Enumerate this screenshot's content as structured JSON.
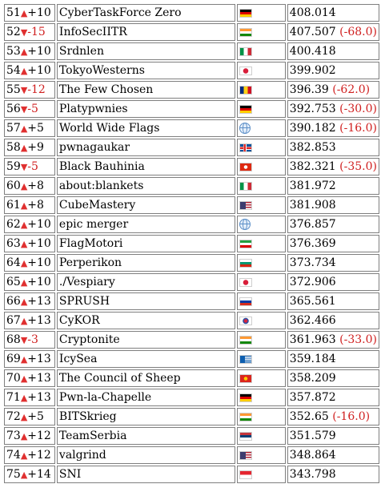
{
  "up_arrow": "▲",
  "down_arrow": "▼",
  "rows": [
    {
      "rank": "51",
      "dir": "up",
      "change": "+10",
      "team": "CyberTaskForce Zero",
      "flag": "de",
      "score": "408.014",
      "delta": ""
    },
    {
      "rank": "52",
      "dir": "down",
      "change": "-15",
      "team": "InfoSecIITR",
      "flag": "in",
      "score": "407.507",
      "delta": "(-68.0)"
    },
    {
      "rank": "53",
      "dir": "up",
      "change": "+10",
      "team": "Srdnlen",
      "flag": "it",
      "score": "400.418",
      "delta": ""
    },
    {
      "rank": "54",
      "dir": "up",
      "change": "+10",
      "team": "TokyoWesterns",
      "flag": "jp",
      "score": "399.902",
      "delta": ""
    },
    {
      "rank": "55",
      "dir": "down",
      "change": "-12",
      "team": "The Few Chosen",
      "flag": "ro",
      "score": "396.39",
      "delta": "(-62.0)"
    },
    {
      "rank": "56",
      "dir": "down",
      "change": "-5",
      "team": "Platypwnies",
      "flag": "de",
      "score": "392.753",
      "delta": "(-30.0)"
    },
    {
      "rank": "57",
      "dir": "up",
      "change": "+5",
      "team": "World Wide Flags",
      "flag": "globe",
      "score": "390.182",
      "delta": "(-16.0)"
    },
    {
      "rank": "58",
      "dir": "up",
      "change": "+9",
      "team": "pwnagaukar",
      "flag": "is",
      "score": "382.853",
      "delta": ""
    },
    {
      "rank": "59",
      "dir": "down",
      "change": "-5",
      "team": "Black Bauhinia",
      "flag": "hk",
      "score": "382.321",
      "delta": "(-35.0)"
    },
    {
      "rank": "60",
      "dir": "up",
      "change": "+8",
      "team": "about:blankets",
      "flag": "it",
      "score": "381.972",
      "delta": ""
    },
    {
      "rank": "61",
      "dir": "up",
      "change": "+8",
      "team": "CubeMastery",
      "flag": "us",
      "score": "381.908",
      "delta": ""
    },
    {
      "rank": "62",
      "dir": "up",
      "change": "+10",
      "team": "epic merger",
      "flag": "globe",
      "score": "376.857",
      "delta": ""
    },
    {
      "rank": "63",
      "dir": "up",
      "change": "+10",
      "team": "FlagMotori",
      "flag": "ir",
      "score": "376.369",
      "delta": ""
    },
    {
      "rank": "64",
      "dir": "up",
      "change": "+10",
      "team": "Perperikon",
      "flag": "bg",
      "score": "373.734",
      "delta": ""
    },
    {
      "rank": "65",
      "dir": "up",
      "change": "+10",
      "team": "./Vespiary",
      "flag": "jp",
      "score": "372.906",
      "delta": ""
    },
    {
      "rank": "66",
      "dir": "up",
      "change": "+13",
      "team": "SPRUSH",
      "flag": "ru",
      "score": "365.561",
      "delta": ""
    },
    {
      "rank": "67",
      "dir": "up",
      "change": "+13",
      "team": "CyKOR",
      "flag": "kr",
      "score": "362.466",
      "delta": ""
    },
    {
      "rank": "68",
      "dir": "down",
      "change": "-3",
      "team": "Cryptonite",
      "flag": "in",
      "score": "361.963",
      "delta": "(-33.0)"
    },
    {
      "rank": "69",
      "dir": "up",
      "change": "+13",
      "team": "IcySea",
      "flag": "gr",
      "score": "359.184",
      "delta": ""
    },
    {
      "rank": "70",
      "dir": "up",
      "change": "+13",
      "team": "The Council of Sheep",
      "flag": "vn",
      "score": "358.209",
      "delta": ""
    },
    {
      "rank": "71",
      "dir": "up",
      "change": "+13",
      "team": "Pwn-la-Chapelle",
      "flag": "de",
      "score": "357.872",
      "delta": ""
    },
    {
      "rank": "72",
      "dir": "up",
      "change": "+5",
      "team": "BITSkrieg",
      "flag": "in",
      "score": "352.65",
      "delta": "(-16.0)"
    },
    {
      "rank": "73",
      "dir": "up",
      "change": "+12",
      "team": "TeamSerbia",
      "flag": "rs",
      "score": "351.579",
      "delta": ""
    },
    {
      "rank": "74",
      "dir": "up",
      "change": "+12",
      "team": "valgrind",
      "flag": "us",
      "score": "348.864",
      "delta": ""
    },
    {
      "rank": "75",
      "dir": "up",
      "change": "+14",
      "team": "SNI",
      "flag": "sg",
      "score": "343.798",
      "delta": ""
    }
  ]
}
